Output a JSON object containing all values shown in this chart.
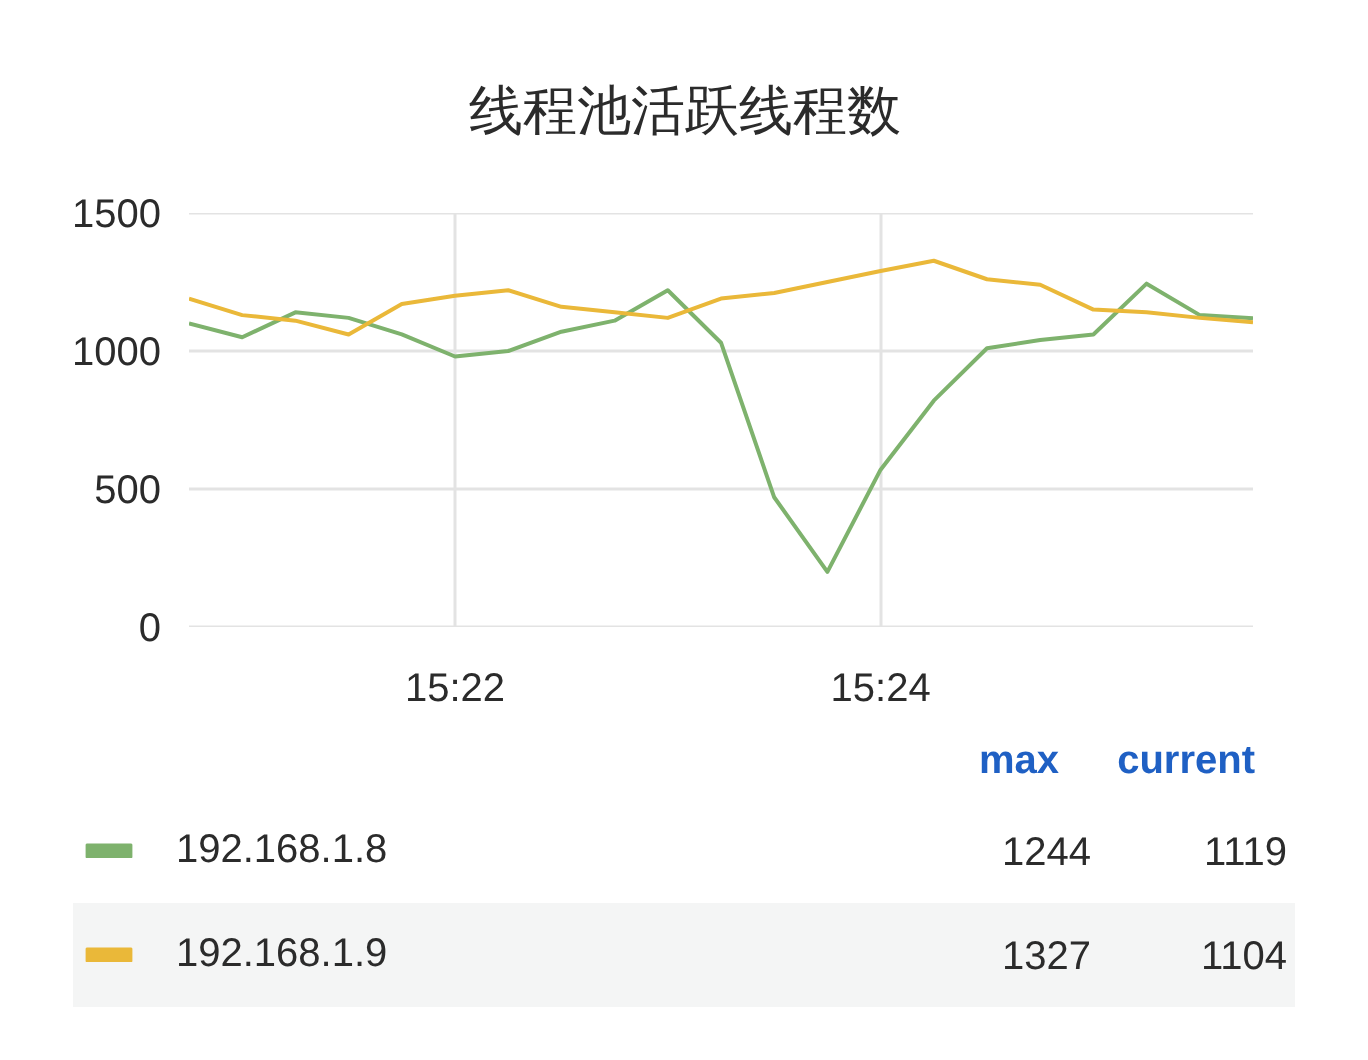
{
  "chart_data": {
    "type": "line",
    "title": "线程池活跃线程数",
    "x": [
      15.345833,
      15.35,
      15.354167,
      15.358333,
      15.3625,
      15.366667,
      15.370833,
      15.375,
      15.379167,
      15.383333,
      15.3875,
      15.391667,
      15.395833,
      15.4,
      15.404167,
      15.408333,
      15.4125,
      15.416667,
      15.420833,
      15.425,
      15.429167
    ],
    "series": [
      {
        "name": "192.168.1.8",
        "color": "#7eb26d",
        "values": [
          1100,
          1050,
          1140,
          1120,
          1060,
          980,
          1000,
          1070,
          1110,
          1220,
          1030,
          470,
          200,
          570,
          820,
          1010,
          1040,
          1060,
          1244,
          1130,
          1119
        ]
      },
      {
        "name": "192.168.1.9",
        "color": "#eab839",
        "values": [
          1190,
          1130,
          1110,
          1060,
          1170,
          1200,
          1220,
          1160,
          1140,
          1120,
          1190,
          1210,
          1250,
          1290,
          1327,
          1260,
          1240,
          1150,
          1140,
          1120,
          1104
        ]
      }
    ],
    "xlim": [
      15.345833,
      15.429167
    ],
    "xticks": [
      {
        "value": 15.366667,
        "label": "15:22"
      },
      {
        "value": 15.4,
        "label": "15:24"
      }
    ],
    "ylim": [
      0,
      1500
    ],
    "yticks": [
      0,
      500,
      1000,
      1500
    ],
    "grid": true,
    "legend": "bottom",
    "annotations": [
      "max",
      "current",
      "1244",
      "1119",
      "1327",
      "1104"
    ]
  }
}
